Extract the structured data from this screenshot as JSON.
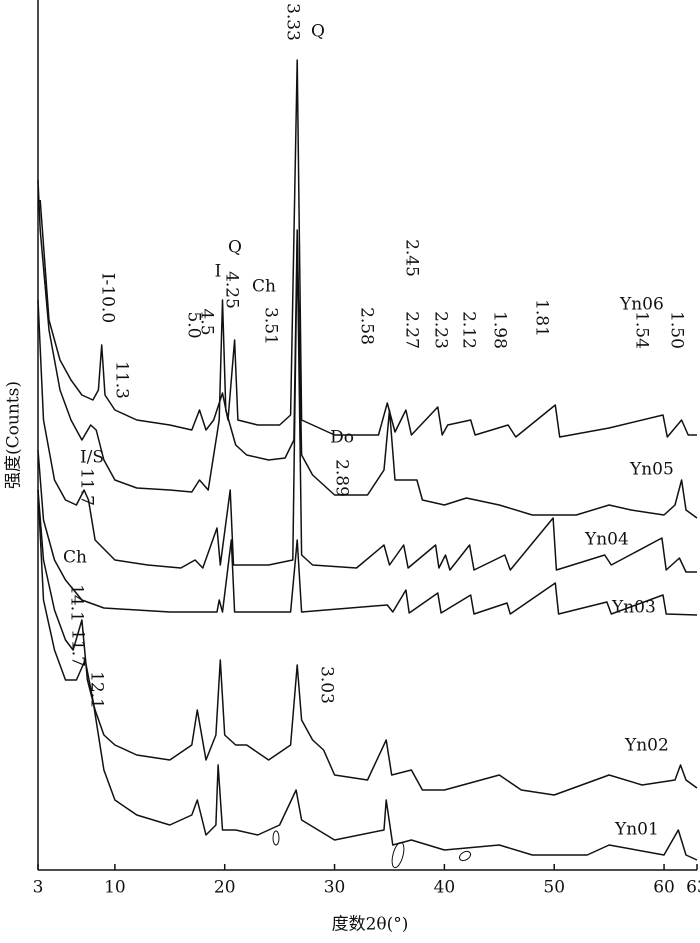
{
  "chart_data": {
    "type": "line",
    "x_label": "度数2θ(°)",
    "y_label": "强度(Counts)",
    "xlim": [
      3,
      63
    ],
    "xticks": [
      3,
      10,
      20,
      30,
      40,
      50,
      60,
      63
    ],
    "ylim": [
      0,
      870
    ],
    "grid": false,
    "series": [
      {
        "name": "Yn06",
        "color": "#111111",
        "x": [
          3.2,
          4,
          5,
          6,
          7,
          8,
          8.5,
          8.8,
          9.1,
          10,
          12,
          15,
          17,
          17.7,
          18.3,
          19,
          19.8,
          20.3,
          20.9,
          21.2,
          23,
          25,
          26,
          26.6,
          27,
          30,
          34,
          34.8,
          35.5,
          36.5,
          37,
          39.4,
          39.8,
          40.3,
          42.4,
          42.8,
          45.8,
          46.5,
          50.1,
          50.5,
          55,
          59.9,
          60.3,
          61.6,
          62.2,
          63
        ],
        "values": [
          670,
          550,
          510,
          490,
          475,
          470,
          480,
          525,
          475,
          460,
          450,
          445,
          440,
          460,
          440,
          450,
          477,
          450,
          530,
          450,
          445,
          445,
          455,
          810,
          450,
          435,
          435,
          467,
          438,
          460,
          435,
          463,
          435,
          445,
          450,
          435,
          445,
          433,
          465,
          433,
          442,
          455,
          433,
          450,
          435,
          435
        ]
      },
      {
        "name": "Yn05",
        "color": "#111111",
        "x": [
          3,
          3.2,
          4,
          5,
          6,
          7,
          7.8,
          8.3,
          9,
          10,
          12,
          15,
          17,
          17.7,
          18.5,
          19.5,
          19.8,
          20.1,
          21,
          22,
          24,
          25.5,
          26.3,
          26.6,
          27,
          28,
          30,
          33,
          34.5,
          35,
          35.5,
          37.5,
          38,
          40,
          42,
          45,
          48,
          52,
          55,
          57,
          60,
          61,
          61.6,
          62,
          63
        ],
        "values": [
          690,
          640,
          540,
          480,
          450,
          430,
          445,
          440,
          410,
          390,
          382,
          380,
          378,
          390,
          380,
          450,
          570,
          460,
          425,
          415,
          410,
          412,
          430,
          640,
          415,
          395,
          375,
          375,
          400,
          460,
          390,
          390,
          370,
          365,
          372,
          365,
          355,
          355,
          365,
          360,
          355,
          365,
          390,
          360,
          352
        ]
      },
      {
        "name": "Yn04",
        "color": "#111111",
        "x": [
          3,
          3.5,
          4.5,
          5.5,
          6.5,
          7.2,
          7.6,
          8.2,
          10,
          13,
          16,
          17.3,
          18,
          19.3,
          19.6,
          20.5,
          20.8,
          24,
          26.2,
          26.6,
          27,
          28,
          32,
          34.5,
          35,
          36.3,
          36.7,
          39.2,
          39.5,
          40.1,
          40.5,
          42.3,
          42.7,
          45.5,
          46,
          49.9,
          50.2,
          54.6,
          55.2,
          59.8,
          60.2,
          61.4,
          62,
          63
        ],
        "values": [
          570,
          450,
          390,
          370,
          365,
          380,
          370,
          330,
          310,
          305,
          302,
          310,
          302,
          342,
          305,
          380,
          305,
          305,
          310,
          630,
          315,
          305,
          302,
          325,
          305,
          325,
          302,
          325,
          302,
          315,
          300,
          325,
          300,
          315,
          300,
          352,
          300,
          315,
          305,
          332,
          300,
          312,
          298,
          298
        ]
      },
      {
        "name": "Yn03",
        "color": "#111111",
        "x": [
          3,
          3.5,
          4.5,
          5.5,
          7,
          9,
          12,
          15,
          19.3,
          19.5,
          19.8,
          20.6,
          20.9,
          26,
          26.6,
          27,
          34.8,
          35.3,
          36.5,
          36.8,
          39.4,
          39.7,
          42.4,
          42.7,
          45.7,
          46,
          50.1,
          50.4,
          54.8,
          55.2,
          59.9,
          60.2,
          63
        ],
        "values": [
          420,
          350,
          310,
          290,
          270,
          262,
          260,
          258,
          258,
          270,
          258,
          330,
          258,
          258,
          330,
          258,
          265,
          258,
          280,
          257,
          277,
          257,
          275,
          256,
          267,
          256,
          287,
          256,
          268,
          256,
          275,
          256,
          255
        ]
      },
      {
        "name": "Yn02",
        "color": "#111111",
        "x": [
          3,
          3.5,
          4.5,
          5.5,
          6.2,
          7,
          7.5,
          8.2,
          9,
          10,
          12,
          15,
          17,
          17.5,
          18.3,
          19.2,
          19.6,
          20,
          21,
          22,
          24,
          26,
          26.6,
          27,
          28,
          29,
          30,
          33,
          34.7,
          35.2,
          37,
          38,
          40,
          45,
          47,
          50,
          55,
          58,
          61,
          61.5,
          62,
          63
        ],
        "values": [
          380,
          310,
          260,
          230,
          220,
          250,
          190,
          160,
          135,
          125,
          115,
          110,
          125,
          160,
          110,
          135,
          210,
          135,
          125,
          125,
          110,
          125,
          205,
          150,
          130,
          120,
          95,
          90,
          130,
          95,
          100,
          80,
          80,
          95,
          80,
          75,
          95,
          85,
          90,
          105,
          90,
          82
        ]
      },
      {
        "name": "Yn01",
        "color": "#111111",
        "x": [
          3,
          3.5,
          4.5,
          5.5,
          6.5,
          7.3,
          8,
          9,
          10,
          12,
          15,
          17,
          17.5,
          18.3,
          19.2,
          19.4,
          19.8,
          21,
          23,
          25,
          26.5,
          27,
          30,
          34.5,
          34.7,
          35.3,
          37,
          40,
          45,
          48,
          53,
          55,
          60,
          61.3,
          62,
          63
        ],
        "values": [
          380,
          270,
          220,
          190,
          190,
          210,
          170,
          100,
          70,
          55,
          45,
          55,
          70,
          35,
          45,
          105,
          40,
          40,
          35,
          45,
          80,
          50,
          30,
          40,
          70,
          25,
          30,
          20,
          25,
          15,
          15,
          25,
          15,
          40,
          15,
          10
        ]
      }
    ],
    "annotations": [
      "Q",
      "3.33",
      "I-10.0",
      "Q",
      "4.25",
      "I",
      "4.5",
      "5.0",
      "Ch",
      "3.51",
      "2.58",
      "2.45",
      "2.27",
      "2.23",
      "2.12",
      "1.98",
      "1.81",
      "1.54",
      "1.50",
      "11.3",
      "I/S",
      "11.7",
      "Do",
      "2.89",
      "Ch",
      "14.1",
      "11.7",
      "12.1",
      "3.03"
    ]
  }
}
